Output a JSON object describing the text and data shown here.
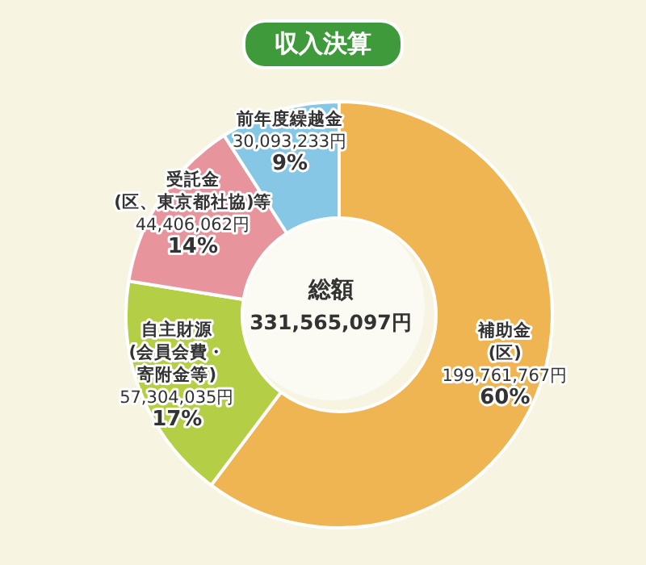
{
  "chart_data": {
    "type": "donut",
    "title": "収入決算",
    "categories": [
      "補助金(区)",
      "自主財源(会員会費・寄附金等)",
      "受託金(区、東京都社協)等",
      "前年度繰越金"
    ],
    "values": [
      199761767,
      57304035,
      44406062,
      30093233
    ],
    "colors": [
      "#efb552",
      "#b4cf45",
      "#e8949c",
      "#86c7e6"
    ],
    "value_labels": [
      "199,761,767円\n60%",
      "57,304,035円\n17%",
      "44,406,062円\n14%",
      "30,093,233円\n9%"
    ],
    "annotations": [
      "総額",
      "331,565,097円"
    ]
  }
}
